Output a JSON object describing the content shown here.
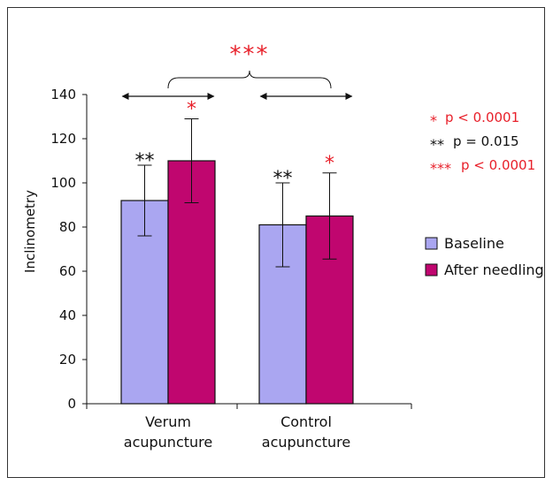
{
  "chart_data": {
    "type": "bar",
    "categories": [
      [
        "Verum",
        "acupuncture"
      ],
      [
        "Control",
        "acupuncture"
      ]
    ],
    "series": [
      {
        "name": "Baseline",
        "color": "#aaa6f1",
        "values": [
          92,
          81
        ],
        "error": [
          16,
          19
        ]
      },
      {
        "name": "After needling",
        "color": "#c0066f",
        "values": [
          110,
          85
        ],
        "error": [
          19,
          19.5
        ]
      }
    ],
    "ylabel": "Inclinometry",
    "ylim": [
      0,
      140
    ],
    "yticks": [
      "0",
      "20",
      "40",
      "60",
      "80",
      "100",
      "120",
      "140"
    ],
    "legend_position": "right",
    "bar_marks": [
      {
        "category": 0,
        "series": 0,
        "label": "**",
        "color": "#111111"
      },
      {
        "category": 0,
        "series": 1,
        "label": "*",
        "color": "#e8202a"
      },
      {
        "category": 1,
        "series": 0,
        "label": "**",
        "color": "#111111"
      },
      {
        "category": 1,
        "series": 1,
        "label": "*",
        "color": "#e8202a"
      }
    ],
    "bracket_label": "***",
    "bracket_color": "#e8202a",
    "significance_notes": [
      {
        "mark": "*",
        "text": "p < 0.0001",
        "color": "#e8202a"
      },
      {
        "mark": "**",
        "text": "p = 0.015",
        "color": "#111111"
      },
      {
        "mark": "***",
        "text": "p < 0.0001",
        "color": "#e8202a"
      }
    ]
  }
}
